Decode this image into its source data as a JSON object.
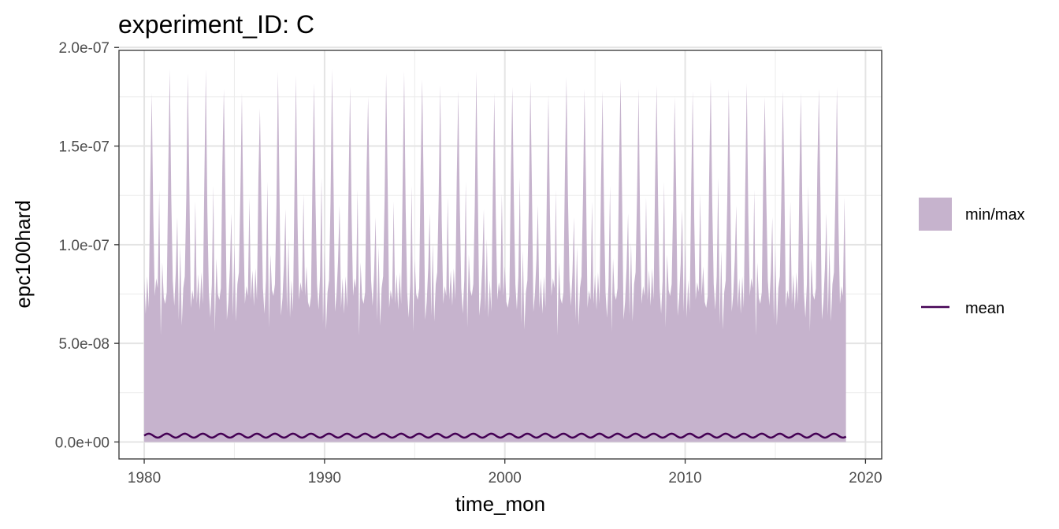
{
  "chart_data": {
    "type": "area",
    "title": "experiment_ID: C",
    "xlabel": "time_mon",
    "ylabel": "epc100hard",
    "xlim": [
      1978.6,
      2020.9
    ],
    "ylim": [
      -8.6e-09,
      1.985e-07
    ],
    "x_ticks": [
      1980,
      1990,
      2000,
      2010,
      2020
    ],
    "x_tick_labels": [
      "1980",
      "1990",
      "2000",
      "2010",
      "2020"
    ],
    "y_ticks": [
      0,
      5e-08,
      1e-07,
      1.5e-07,
      2e-07
    ],
    "y_tick_labels": [
      "0.0e+00",
      "5.0e-08",
      "1.0e-07",
      "1.5e-07",
      "2.0e-07"
    ],
    "grid": true,
    "legend_position": "right",
    "legend": [
      {
        "label": "min/max",
        "kind": "ribbon",
        "color": "#c6b3cd"
      },
      {
        "label": "mean",
        "kind": "line",
        "color": "#440154"
      }
    ],
    "series": [
      {
        "name": "min/max",
        "kind": "ribbon",
        "x_start": 1980.0,
        "x_end": 2018.92,
        "step_months": 1,
        "ymin": 0.0,
        "ymax_by_month_e7": [
          0.93,
          0.67,
          0.78,
          0.76,
          1.3,
          1.79,
          1.22,
          0.72,
          0.73,
          0.82,
          1.24,
          0.64
        ],
        "ymax_peaks_by_year_e7": [
          1.77,
          1.89,
          1.87,
          1.89,
          1.79,
          1.77,
          1.69,
          1.88,
          1.86,
          1.82,
          1.89,
          1.8,
          1.75,
          1.87,
          1.88,
          1.84,
          1.81,
          1.78,
          1.88,
          1.77,
          1.8,
          1.83,
          1.76,
          1.85,
          1.79,
          1.78,
          1.84,
          1.79,
          1.81,
          1.75,
          1.78,
          1.84,
          1.79,
          1.82,
          1.75,
          1.78,
          1.77,
          1.79,
          1.8
        ]
      },
      {
        "name": "mean",
        "kind": "line",
        "x_start": 1980.0,
        "x_end": 2018.92,
        "period_years": 1,
        "center": 3.2e-09,
        "amplitude": 1e-09
      }
    ]
  }
}
